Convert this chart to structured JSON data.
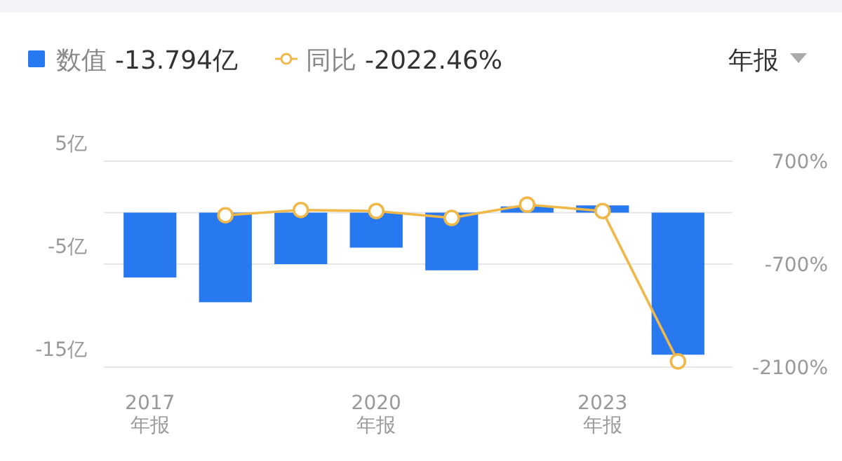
{
  "chart_data": {
    "type": "bar",
    "categories": [
      "2017\n年报",
      null,
      null,
      "2020\n年报",
      null,
      null,
      "2023\n年报",
      null
    ],
    "series": [
      {
        "name": "数值",
        "color": "#2878f0",
        "values": [
          -6.3,
          -8.7,
          -5.0,
          -3.4,
          -5.6,
          0.6,
          0.7,
          -13.794
        ]
      },
      {
        "name": "同比",
        "type": "line",
        "axis": "y2",
        "color": "#f0b848",
        "marker": "circle",
        "values": [
          null,
          -36,
          36,
          22,
          -72,
          108,
          22,
          -2022.46
        ]
      }
    ],
    "ylim": [
      -15,
      5
    ],
    "yticks": [
      {
        "value": 5,
        "label": "5亿"
      },
      {
        "value": 0,
        "label": null
      },
      {
        "value": -5,
        "label": "-5亿"
      },
      {
        "value": -15,
        "label": "-15亿"
      }
    ],
    "y2lim": [
      -2100,
      700
    ],
    "y2ticks": [
      {
        "value": 700,
        "label": "700%"
      },
      {
        "value": -700,
        "label": "-700%"
      },
      {
        "value": -2100,
        "label": "-2100%"
      }
    ],
    "grid": "y",
    "legend": "top left",
    "annotations": [
      "-13.794亿",
      "-2022.46%",
      "年报"
    ]
  }
}
